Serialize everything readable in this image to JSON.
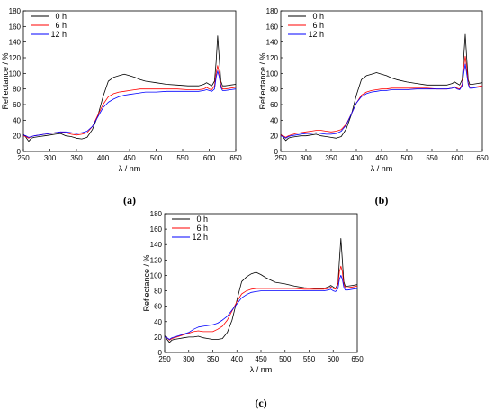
{
  "chart_data": [
    {
      "type": "line",
      "panel_label": "(a)",
      "xlabel": "λ / nm",
      "ylabel": "Reflectance / %",
      "xlim": [
        250,
        650
      ],
      "ylim": [
        0,
        180
      ],
      "xticks": [
        250,
        300,
        350,
        400,
        450,
        500,
        550,
        600,
        650
      ],
      "yticks": [
        0,
        20,
        40,
        60,
        80,
        100,
        120,
        140,
        160,
        180
      ],
      "legend_position": "top-left",
      "series": [
        {
          "name": "0 h",
          "color": "#000000",
          "x": [
            250,
            255,
            260,
            265,
            270,
            280,
            290,
            300,
            310,
            320,
            330,
            340,
            350,
            360,
            370,
            380,
            390,
            400,
            410,
            420,
            430,
            440,
            450,
            460,
            470,
            480,
            500,
            520,
            540,
            560,
            580,
            590,
            595,
            600,
            605,
            610,
            613,
            616,
            619,
            622,
            625,
            630,
            640,
            650
          ],
          "y": [
            22,
            18,
            13,
            17,
            18,
            19,
            20,
            21,
            22,
            23,
            20,
            19,
            17,
            16,
            18,
            28,
            45,
            70,
            90,
            95,
            97,
            99,
            97,
            95,
            92,
            90,
            88,
            86,
            85,
            84,
            84,
            86,
            88,
            86,
            84,
            90,
            115,
            148,
            118,
            90,
            84,
            84,
            85,
            86
          ]
        },
        {
          "name": "6 h",
          "color": "#ff0000",
          "x": [
            250,
            255,
            260,
            265,
            270,
            280,
            290,
            300,
            310,
            320,
            330,
            340,
            350,
            360,
            370,
            380,
            390,
            400,
            410,
            420,
            430,
            440,
            450,
            460,
            470,
            480,
            500,
            520,
            540,
            560,
            580,
            590,
            595,
            600,
            605,
            610,
            613,
            616,
            619,
            622,
            625,
            630,
            640,
            650
          ],
          "y": [
            20,
            19,
            17,
            19,
            20,
            21,
            22,
            23,
            24,
            25,
            24,
            22,
            21,
            22,
            24,
            32,
            46,
            60,
            70,
            74,
            76,
            77,
            78,
            79,
            80,
            80,
            80,
            80,
            80,
            79,
            79,
            80,
            82,
            80,
            79,
            84,
            100,
            110,
            100,
            85,
            80,
            80,
            81,
            82
          ]
        },
        {
          "name": "12 h",
          "color": "#0000ff",
          "x": [
            250,
            255,
            260,
            265,
            270,
            280,
            290,
            300,
            310,
            320,
            330,
            340,
            350,
            360,
            370,
            380,
            390,
            400,
            410,
            420,
            430,
            440,
            450,
            460,
            470,
            480,
            500,
            520,
            540,
            560,
            580,
            590,
            595,
            600,
            605,
            610,
            613,
            616,
            619,
            622,
            625,
            630,
            640,
            650
          ],
          "y": [
            21,
            20,
            18,
            19,
            20,
            21,
            22,
            23,
            24,
            25,
            25,
            24,
            23,
            24,
            26,
            32,
            44,
            56,
            63,
            67,
            70,
            72,
            73,
            74,
            75,
            76,
            76,
            77,
            77,
            77,
            77,
            78,
            79,
            78,
            77,
            80,
            95,
            103,
            95,
            82,
            78,
            78,
            79,
            80
          ]
        }
      ]
    },
    {
      "type": "line",
      "panel_label": "(b)",
      "xlabel": "λ / nm",
      "ylabel": "Reflectance / %",
      "xlim": [
        250,
        650
      ],
      "ylim": [
        0,
        180
      ],
      "xticks": [
        250,
        300,
        350,
        400,
        450,
        500,
        550,
        600,
        650
      ],
      "yticks": [
        0,
        20,
        40,
        60,
        80,
        100,
        120,
        140,
        160,
        180
      ],
      "legend_position": "top-left",
      "series": [
        {
          "name": "0 h",
          "color": "#000000",
          "x": [
            250,
            255,
            260,
            265,
            270,
            280,
            290,
            300,
            310,
            320,
            330,
            340,
            350,
            360,
            370,
            380,
            390,
            400,
            410,
            420,
            430,
            440,
            450,
            460,
            470,
            480,
            500,
            520,
            540,
            560,
            580,
            590,
            595,
            600,
            605,
            610,
            613,
            616,
            619,
            622,
            625,
            630,
            640,
            650
          ],
          "y": [
            22,
            18,
            14,
            17,
            18,
            19,
            20,
            20,
            21,
            22,
            20,
            19,
            18,
            17,
            19,
            29,
            47,
            72,
            92,
            97,
            99,
            101,
            99,
            97,
            94,
            92,
            89,
            87,
            85,
            85,
            85,
            87,
            89,
            87,
            85,
            92,
            120,
            150,
            120,
            92,
            86,
            86,
            87,
            88
          ]
        },
        {
          "name": "6 h",
          "color": "#ff0000",
          "x": [
            250,
            255,
            260,
            265,
            270,
            280,
            290,
            300,
            310,
            320,
            330,
            340,
            350,
            360,
            370,
            380,
            390,
            400,
            410,
            420,
            430,
            440,
            450,
            460,
            470,
            480,
            500,
            520,
            540,
            560,
            580,
            590,
            595,
            600,
            605,
            610,
            613,
            616,
            619,
            622,
            625,
            630,
            640,
            650
          ],
          "y": [
            21,
            20,
            18,
            20,
            21,
            23,
            24,
            25,
            26,
            27,
            27,
            26,
            25,
            26,
            28,
            35,
            48,
            62,
            72,
            76,
            78,
            79,
            80,
            80,
            81,
            81,
            81,
            81,
            81,
            80,
            80,
            81,
            83,
            81,
            80,
            86,
            108,
            122,
            108,
            88,
            82,
            82,
            83,
            84
          ]
        },
        {
          "name": "12 h",
          "color": "#0000ff",
          "x": [
            250,
            255,
            260,
            265,
            270,
            280,
            290,
            300,
            310,
            320,
            330,
            340,
            350,
            360,
            370,
            380,
            390,
            400,
            410,
            420,
            430,
            440,
            450,
            460,
            470,
            480,
            500,
            520,
            540,
            560,
            580,
            590,
            595,
            600,
            605,
            610,
            613,
            616,
            619,
            622,
            625,
            630,
            640,
            650
          ],
          "y": [
            20,
            19,
            17,
            19,
            20,
            21,
            22,
            23,
            23,
            24,
            23,
            22,
            22,
            23,
            26,
            34,
            48,
            62,
            70,
            74,
            76,
            77,
            78,
            78,
            79,
            79,
            79,
            80,
            80,
            80,
            80,
            81,
            82,
            80,
            79,
            84,
            100,
            112,
            100,
            86,
            81,
            81,
            82,
            83
          ]
        }
      ]
    },
    {
      "type": "line",
      "panel_label": "(c)",
      "xlabel": "λ / nm",
      "ylabel": "Reflectance / %",
      "xlim": [
        250,
        650
      ],
      "ylim": [
        0,
        180
      ],
      "xticks": [
        250,
        300,
        350,
        400,
        450,
        500,
        550,
        600,
        650
      ],
      "yticks": [
        0,
        20,
        40,
        60,
        80,
        100,
        120,
        140,
        160,
        180
      ],
      "legend_position": "top-left",
      "series": [
        {
          "name": "0 h",
          "color": "#000000",
          "x": [
            250,
            255,
            260,
            265,
            270,
            280,
            290,
            300,
            310,
            320,
            330,
            340,
            350,
            360,
            370,
            380,
            390,
            400,
            410,
            420,
            430,
            440,
            450,
            460,
            470,
            480,
            500,
            520,
            540,
            560,
            580,
            590,
            595,
            600,
            605,
            610,
            613,
            616,
            619,
            622,
            625,
            630,
            640,
            650
          ],
          "y": [
            22,
            17,
            13,
            16,
            17,
            18,
            19,
            20,
            20,
            21,
            19,
            18,
            17,
            17,
            18,
            26,
            42,
            68,
            92,
            98,
            102,
            104,
            101,
            97,
            94,
            91,
            89,
            86,
            84,
            83,
            83,
            85,
            87,
            85,
            83,
            90,
            120,
            148,
            120,
            92,
            86,
            86,
            87,
            88
          ]
        },
        {
          "name": "6 h",
          "color": "#ff0000",
          "x": [
            250,
            255,
            260,
            265,
            270,
            280,
            290,
            300,
            310,
            320,
            330,
            340,
            350,
            360,
            370,
            380,
            390,
            400,
            410,
            420,
            430,
            440,
            450,
            460,
            470,
            480,
            500,
            520,
            540,
            560,
            580,
            590,
            595,
            600,
            605,
            610,
            613,
            616,
            619,
            622,
            625,
            630,
            640,
            650
          ],
          "y": [
            20,
            19,
            16,
            18,
            19,
            21,
            23,
            25,
            27,
            28,
            27,
            27,
            27,
            30,
            34,
            42,
            54,
            66,
            76,
            80,
            82,
            83,
            83,
            83,
            83,
            83,
            83,
            83,
            82,
            82,
            82,
            83,
            85,
            83,
            82,
            88,
            105,
            112,
            105,
            88,
            84,
            84,
            85,
            86
          ]
        },
        {
          "name": "12 h",
          "color": "#0000ff",
          "x": [
            250,
            255,
            260,
            265,
            270,
            280,
            290,
            300,
            310,
            320,
            330,
            340,
            350,
            360,
            370,
            380,
            390,
            400,
            410,
            420,
            430,
            440,
            450,
            460,
            470,
            480,
            500,
            520,
            540,
            560,
            580,
            590,
            595,
            600,
            605,
            610,
            613,
            616,
            619,
            622,
            625,
            630,
            640,
            650
          ],
          "y": [
            20,
            19,
            17,
            19,
            20,
            22,
            24,
            26,
            30,
            33,
            34,
            35,
            36,
            38,
            42,
            47,
            55,
            63,
            71,
            75,
            78,
            79,
            80,
            80,
            80,
            80,
            80,
            80,
            80,
            80,
            80,
            81,
            82,
            80,
            79,
            83,
            95,
            100,
            95,
            85,
            81,
            81,
            82,
            83
          ]
        }
      ]
    }
  ]
}
